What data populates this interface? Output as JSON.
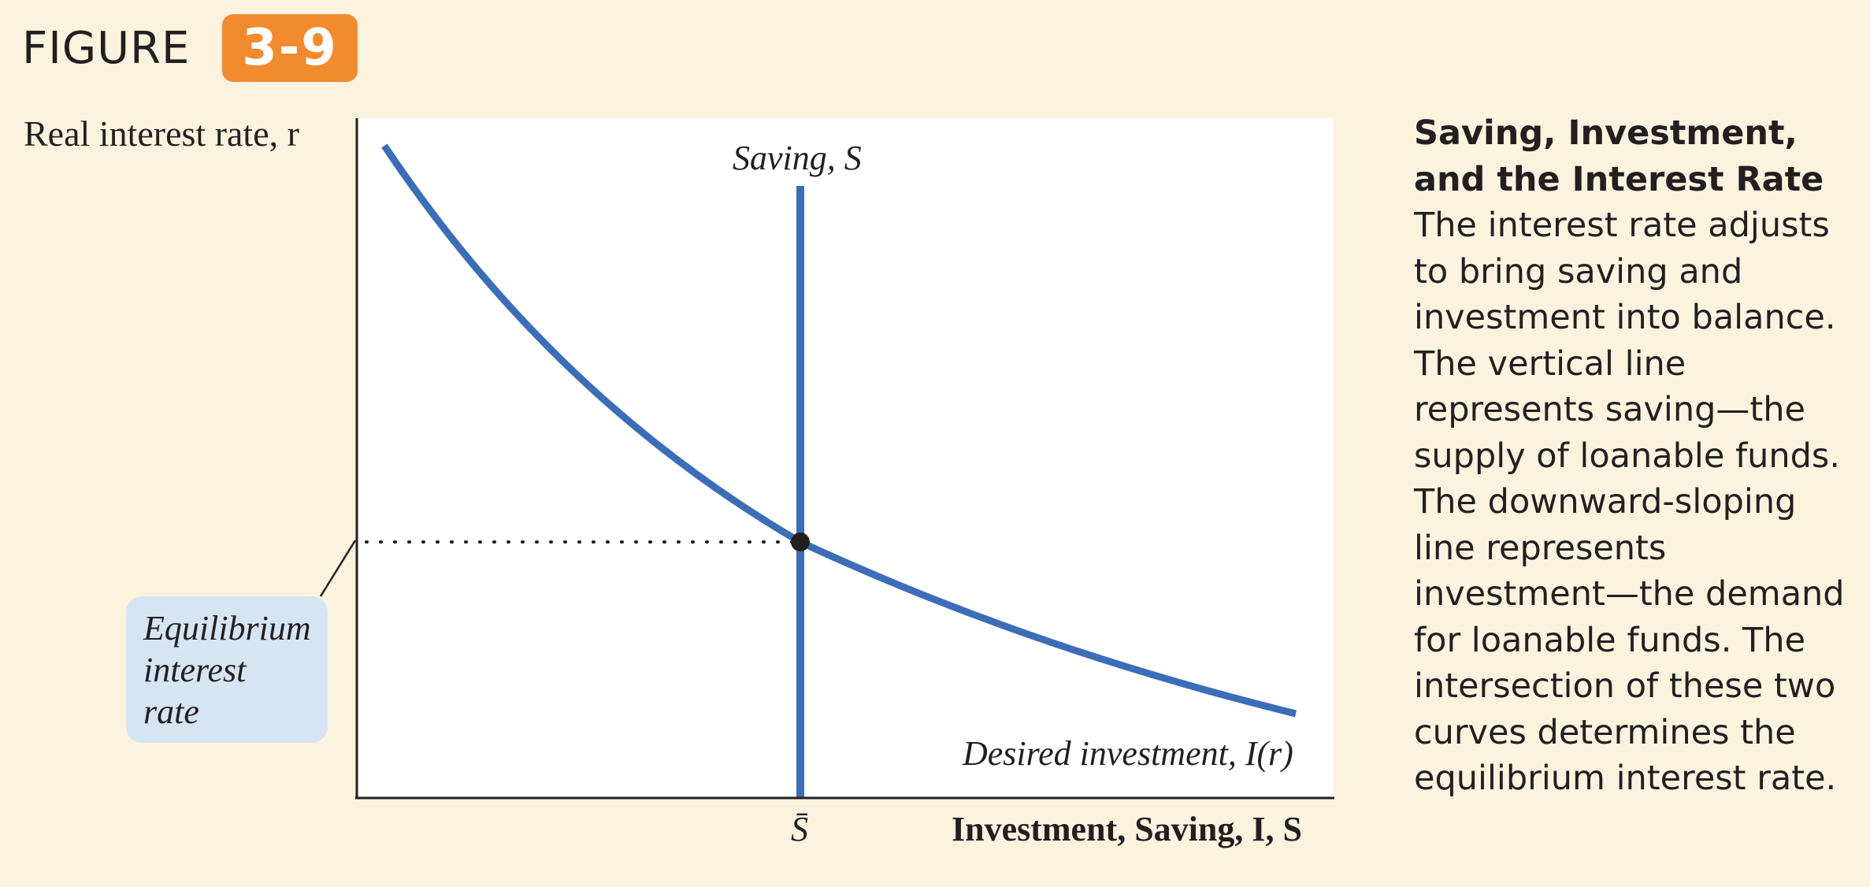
{
  "figure": {
    "word": "FIGURE",
    "number": "3-9"
  },
  "chart_data": {
    "type": "line",
    "ylabel": "Real interest rate, r",
    "xlabel": "Investment, Saving, I, S",
    "x_tick_label": "S̄",
    "series": [
      {
        "name": "Saving, S",
        "kind": "vertical line at S̄"
      },
      {
        "name": "Desired investment, I(r)",
        "kind": "downward-sloping curve"
      }
    ],
    "annotations": [
      "Equilibrium interest rate"
    ]
  },
  "callout": {
    "line1": "Equilibrium",
    "line2": "interest",
    "line3": "rate"
  },
  "caption": {
    "title": "Saving, Investment, and the Interest Rate",
    "body": "The interest rate adjusts to bring saving and investment into balance. The vertical line represents saving—the supply of loanable funds. The downward-sloping line represents investment—the demand for loanable funds. The intersection of these two curves determines the equilibrium interest rate."
  },
  "colors": {
    "curve": "#3b6db8",
    "badge": "#f28a2e",
    "background": "#fcf3df",
    "callout": "#d6e5f3"
  }
}
